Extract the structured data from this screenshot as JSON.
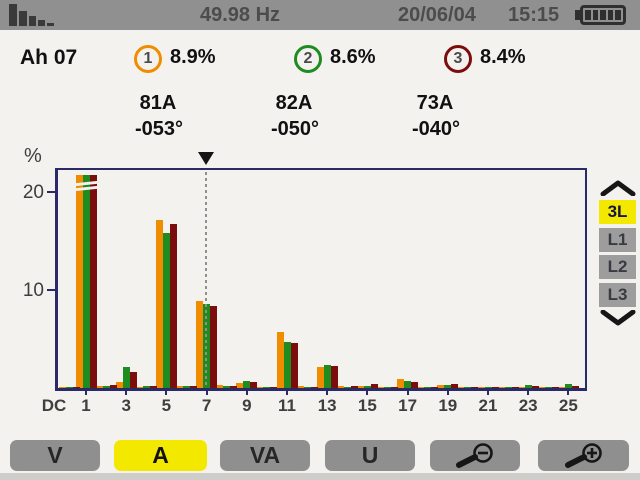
{
  "top_bar": {
    "mode_icon": "harmonics-mode-icon",
    "frequency": "49.98 Hz",
    "date": "20/06/04",
    "time": "15:15",
    "battery": "full-5-bars"
  },
  "header": {
    "measurement_label": "Ah 07",
    "phases": [
      {
        "number": "1",
        "percent": "8.9%",
        "current": "81A",
        "angle": "-053°",
        "color": "#f08c00"
      },
      {
        "number": "2",
        "percent": "8.6%",
        "current": "82A",
        "angle": "-050°",
        "color": "#1f8c1f"
      },
      {
        "number": "3",
        "percent": "8.4%",
        "current": "73A",
        "angle": "-040°",
        "color": "#7c0d0d"
      }
    ]
  },
  "chart_data": {
    "type": "bar",
    "ylabel": "%",
    "y_tick_labels": [
      "20",
      "10"
    ],
    "ylim": [
      0,
      22.2
    ],
    "grid": "off",
    "x_tick_labels": [
      "DC",
      "1",
      "3",
      "5",
      "7",
      "9",
      "11",
      "13",
      "15",
      "17",
      "19",
      "21",
      "23",
      "25"
    ],
    "categories": [
      "DC",
      "1",
      "2",
      "3",
      "4",
      "5",
      "6",
      "7",
      "8",
      "9",
      "10",
      "11",
      "12",
      "13",
      "14",
      "15",
      "16",
      "17",
      "18",
      "19",
      "20",
      "21",
      "22",
      "23",
      "24",
      "25"
    ],
    "series": [
      {
        "name": "phase-1",
        "color": "#f08c00",
        "values": [
          0.1,
          21.7,
          0.25,
          0.6,
          0.15,
          17.1,
          0.25,
          8.9,
          0.3,
          0.55,
          0.15,
          5.7,
          0.2,
          2.1,
          0.2,
          0.2,
          0.1,
          0.9,
          0.15,
          0.3,
          0.1,
          0.15,
          0.1,
          0.15,
          0.1,
          0.15
        ]
      },
      {
        "name": "phase-2",
        "color": "#1f8c1f",
        "values": [
          0.1,
          21.7,
          0.2,
          2.1,
          0.2,
          15.8,
          0.2,
          8.6,
          0.2,
          0.75,
          0.15,
          4.7,
          0.15,
          2.3,
          0.15,
          0.25,
          0.1,
          0.75,
          0.1,
          0.35,
          0.1,
          0.1,
          0.1,
          0.35,
          0.1,
          0.4
        ]
      },
      {
        "name": "phase-3",
        "color": "#7c0d0d",
        "values": [
          0.1,
          21.7,
          0.3,
          1.6,
          0.25,
          16.7,
          0.2,
          8.4,
          0.2,
          0.65,
          0.15,
          4.6,
          0.15,
          2.2,
          0.2,
          0.45,
          0.1,
          0.6,
          0.15,
          0.45,
          0.1,
          0.15,
          0.1,
          0.2,
          0.1,
          0.25
        ]
      }
    ],
    "cursor_harmonic": "7",
    "clipped_harmonic": "1"
  },
  "side_controls": {
    "up_icon": "chevron-up-icon",
    "down_icon": "chevron-down-icon",
    "options": [
      {
        "label": "3L",
        "selected": true
      },
      {
        "label": "L1",
        "selected": false
      },
      {
        "label": "L2",
        "selected": false
      },
      {
        "label": "L3",
        "selected": false
      }
    ]
  },
  "bottom_bar": {
    "buttons": [
      {
        "label": "V",
        "selected": false
      },
      {
        "label": "A",
        "selected": true
      },
      {
        "label": "VA",
        "selected": false
      },
      {
        "label": "U",
        "selected": false
      }
    ],
    "zoom_out_icon": "magnifier-minus-icon",
    "zoom_in_icon": "magnifier-plus-icon"
  },
  "colors": {
    "selected_yellow": "#f3e800",
    "frame_navy": "#2a2a66",
    "topbar_gray": "#909090",
    "softkey_gray": "#8f8f8f"
  }
}
